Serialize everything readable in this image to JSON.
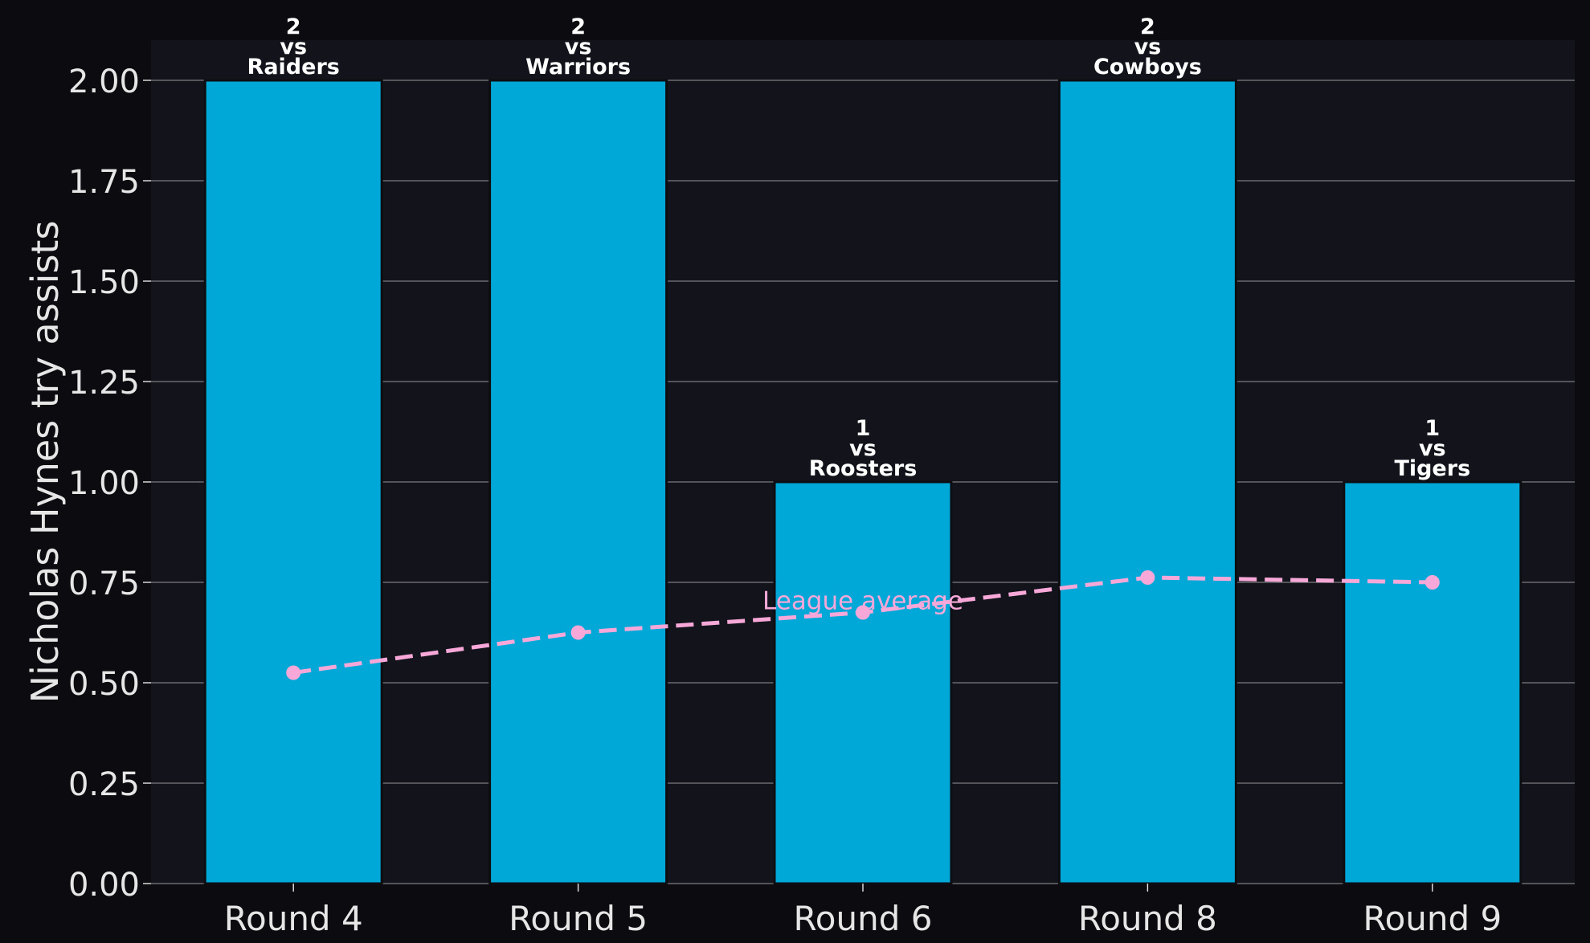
{
  "chart_data": {
    "type": "bar",
    "categories": [
      "Round 4",
      "Round 5",
      "Round 6",
      "Round 8",
      "Round 9"
    ],
    "opponents": [
      "Raiders",
      "Warriors",
      "Roosters",
      "Cowboys",
      "Tigers"
    ],
    "vs_label": "vs",
    "values": [
      2,
      2,
      1,
      2,
      1
    ],
    "ylabel": "Nicholas Hynes try assists",
    "xlabel": "",
    "ylim": [
      0,
      2.1
    ],
    "yticks": [
      0,
      0.25,
      0.5,
      0.75,
      1.0,
      1.25,
      1.5,
      1.75,
      2.0
    ],
    "grid": "horizontal",
    "series": [
      {
        "name": "",
        "type": "bar",
        "values": [
          2,
          2,
          1,
          2,
          1
        ]
      },
      {
        "name": "League average",
        "type": "line",
        "style": "dashed",
        "values": [
          0.525,
          0.625,
          0.675,
          0.762,
          0.75
        ]
      }
    ],
    "annotation": "League average",
    "colors": {
      "background": "#0b0b10",
      "plot_background": "#12131b",
      "bar": "#00a8d8",
      "bar_edge": "#0d0d12",
      "average_line": "#f7a8d8",
      "grid": "#6b6b70",
      "text": "#e6e6e6",
      "label": "#ffffff"
    }
  }
}
